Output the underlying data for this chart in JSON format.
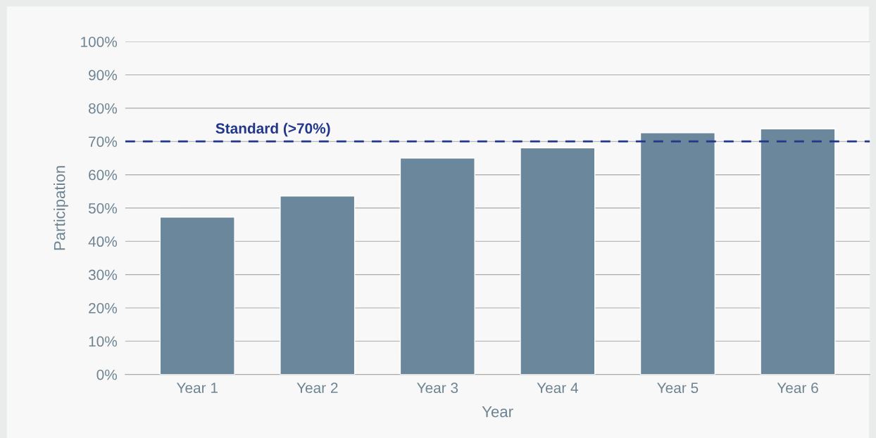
{
  "chart_data": {
    "type": "bar",
    "xlabel": "Year",
    "ylabel": "Participation",
    "categories": [
      "Year 1",
      "Year 2",
      "Year 3",
      "Year 4",
      "Year 5",
      "Year 6"
    ],
    "values": [
      47.3,
      53.6,
      65,
      68.1,
      72.6,
      73.8
    ],
    "color": "#6a879b",
    "ylim": [
      0,
      100
    ],
    "yticks": [
      {
        "value": 0,
        "label": "0%"
      },
      {
        "value": 10,
        "label": "10%"
      },
      {
        "value": 20,
        "label": "20%"
      },
      {
        "value": 30,
        "label": "30%"
      },
      {
        "value": 40,
        "label": "40%"
      },
      {
        "value": 50,
        "label": "50%"
      },
      {
        "value": 60,
        "label": "60%"
      },
      {
        "value": 70,
        "label": "70%"
      },
      {
        "value": 80,
        "label": "80%"
      },
      {
        "value": 90,
        "label": "90%"
      },
      {
        "value": 100,
        "label": "100%"
      }
    ],
    "grid": "y",
    "ref_lines": [
      {
        "axis": "y",
        "value": 70,
        "label": "Standard (>70%)",
        "color": "#23378a",
        "line_style": "dashed"
      }
    ]
  }
}
